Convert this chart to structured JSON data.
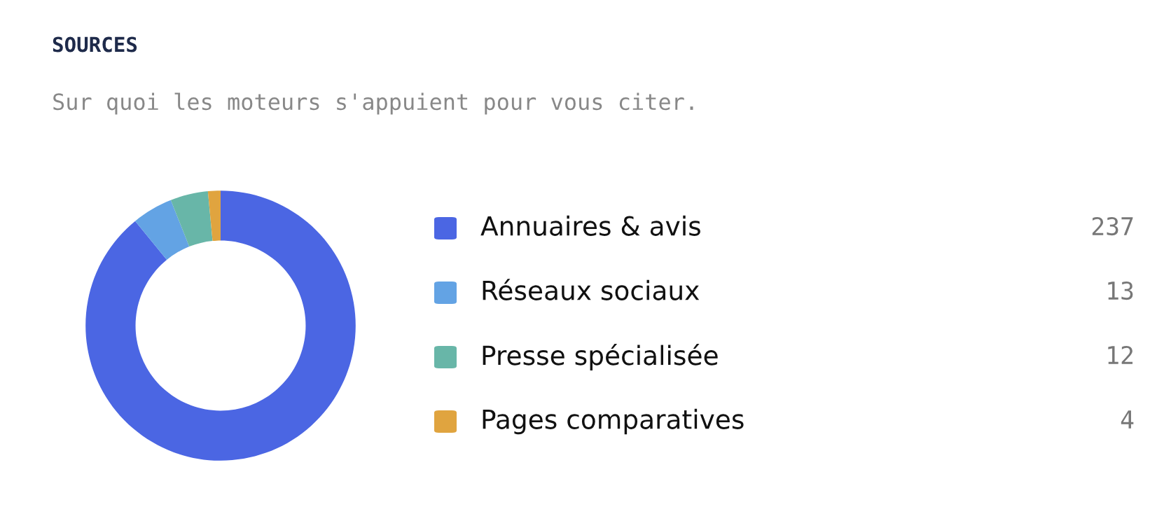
{
  "chart_data": {
    "type": "donut",
    "title": "SOURCES",
    "subtitle": "Sur quoi les moteurs s'appuient pour vous citer.",
    "categories": [
      "Annuaires & avis",
      "Réseaux sociaux",
      "Presse spécialisée",
      "Pages comparatives"
    ],
    "values": [
      237,
      13,
      12,
      4
    ],
    "colors": [
      "#4b66e3",
      "#63a3e4",
      "#68b6a8",
      "#e0a43f"
    ],
    "data_labels": true,
    "legend": "right"
  }
}
